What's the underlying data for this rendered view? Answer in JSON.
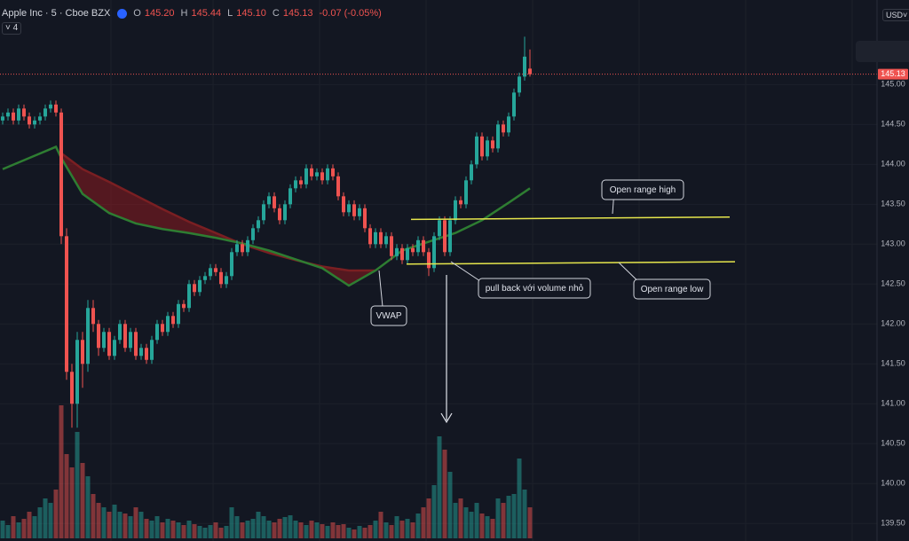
{
  "chart_data": {
    "type": "candlestick",
    "symbol": "Apple Inc · 5 · Cboe BZX",
    "ohlc_header": [
      {
        "key": "O",
        "text": "145.20"
      },
      {
        "key": "H",
        "text": "145.44"
      },
      {
        "key": "L",
        "text": "145.10"
      },
      {
        "key": "C",
        "text": "145.13"
      }
    ],
    "change": "-0.07 (-0.05%)",
    "interval_badge": "4",
    "currency": "USD",
    "up_color": "#26a69a",
    "down_color": "#ef5350",
    "ylim": [
      139.28,
      146.06
    ],
    "yticks": [
      {
        "value": 139.5,
        "label": "139.50"
      },
      {
        "value": 140,
        "label": "140.00"
      },
      {
        "value": 140.5,
        "label": "140.50"
      },
      {
        "value": 141,
        "label": "141.00"
      },
      {
        "value": 141.5,
        "label": "141.50"
      },
      {
        "value": 142,
        "label": "142.00"
      },
      {
        "value": 142.5,
        "label": "142.50"
      },
      {
        "value": 143,
        "label": "143.00"
      },
      {
        "value": 143.5,
        "label": "143.50"
      },
      {
        "value": 144,
        "label": "144.00"
      },
      {
        "value": 144.5,
        "label": "144.50"
      },
      {
        "value": 145,
        "label": "145.00"
      }
    ],
    "grid": true,
    "last_price": {
      "value": 145.13,
      "label": "145.13"
    },
    "open": [
      144.55,
      144.6,
      144.65,
      144.55,
      144.7,
      144.6,
      144.5,
      144.55,
      144.6,
      144.7,
      144.75,
      144.65,
      143.1,
      141.4,
      141.0,
      141.8,
      141.5,
      142.2,
      142.0,
      141.7,
      141.9,
      141.6,
      141.8,
      142.0,
      141.7,
      141.9,
      141.6,
      141.7,
      141.55,
      141.8,
      142.0,
      141.9,
      142.1,
      142.0,
      142.25,
      142.2,
      142.5,
      142.4,
      142.55,
      142.6,
      142.7,
      142.65,
      142.5,
      142.6,
      142.9,
      143.0,
      142.9,
      143.05,
      143.2,
      143.3,
      143.5,
      143.6,
      143.45,
      143.3,
      143.5,
      143.7,
      143.8,
      143.75,
      143.95,
      143.85,
      143.9,
      143.8,
      143.95,
      143.85,
      143.6,
      143.4,
      143.5,
      143.35,
      143.45,
      143.2,
      143.0,
      143.15,
      143.0,
      143.1,
      142.85,
      142.95,
      142.8,
      142.95,
      142.9,
      143.05,
      142.9,
      142.7,
      143.1,
      143.3,
      142.9,
      143.3,
      143.55,
      143.5,
      143.8,
      144.0,
      144.35,
      144.1,
      144.3,
      144.2,
      144.5,
      144.4,
      144.6,
      144.9,
      145.1,
      145.2
    ],
    "high": [
      144.65,
      144.7,
      144.7,
      144.75,
      144.75,
      144.65,
      144.6,
      144.65,
      144.75,
      144.8,
      144.8,
      144.7,
      143.2,
      141.5,
      141.9,
      141.9,
      142.3,
      142.3,
      142.05,
      141.95,
      141.95,
      141.85,
      142.05,
      142.05,
      141.95,
      141.95,
      141.75,
      141.75,
      141.85,
      142.05,
      142.05,
      142.15,
      142.15,
      142.3,
      142.3,
      142.55,
      142.55,
      142.6,
      142.65,
      142.75,
      142.75,
      142.7,
      142.65,
      142.95,
      143.05,
      143.05,
      143.1,
      143.25,
      143.35,
      143.55,
      143.65,
      143.65,
      143.5,
      143.55,
      143.75,
      143.85,
      143.85,
      144.0,
      144.0,
      143.95,
      143.95,
      144.0,
      144.0,
      143.9,
      143.65,
      143.55,
      143.55,
      143.5,
      143.5,
      143.25,
      143.2,
      143.2,
      143.15,
      143.15,
      143.0,
      143.0,
      143.0,
      143.0,
      143.1,
      143.1,
      142.95,
      143.15,
      143.35,
      143.35,
      143.35,
      143.6,
      143.6,
      143.85,
      144.05,
      144.4,
      144.4,
      144.35,
      144.35,
      144.55,
      144.55,
      144.65,
      144.95,
      145.15,
      145.6,
      145.44
    ],
    "low": [
      144.5,
      144.55,
      144.5,
      144.5,
      144.55,
      144.45,
      144.45,
      144.5,
      144.55,
      144.65,
      144.6,
      143.0,
      141.3,
      140.7,
      140.7,
      141.2,
      141.4,
      141.9,
      141.6,
      141.65,
      141.55,
      141.55,
      141.75,
      141.65,
      141.65,
      141.55,
      141.55,
      141.5,
      141.5,
      141.75,
      141.85,
      141.85,
      141.95,
      141.95,
      142.15,
      142.15,
      142.35,
      142.35,
      142.5,
      142.55,
      142.6,
      142.45,
      142.45,
      142.55,
      142.85,
      142.85,
      142.85,
      143.0,
      143.15,
      143.25,
      143.45,
      143.4,
      143.25,
      143.25,
      143.45,
      143.65,
      143.7,
      143.7,
      143.8,
      143.8,
      143.75,
      143.75,
      143.8,
      143.55,
      143.35,
      143.35,
      143.3,
      143.3,
      143.15,
      142.95,
      142.95,
      142.95,
      142.95,
      142.8,
      142.8,
      142.75,
      142.75,
      142.85,
      142.85,
      142.85,
      142.6,
      142.65,
      143.05,
      142.85,
      142.85,
      143.25,
      143.45,
      143.45,
      143.75,
      143.95,
      144.05,
      144.05,
      144.15,
      144.15,
      144.35,
      144.35,
      144.55,
      144.85,
      145.05,
      145.1
    ],
    "close": [
      144.6,
      144.65,
      144.55,
      144.7,
      144.6,
      144.5,
      144.55,
      144.6,
      144.7,
      144.75,
      144.65,
      143.1,
      141.4,
      141.0,
      141.8,
      141.5,
      142.2,
      142.0,
      141.7,
      141.9,
      141.6,
      141.8,
      142.0,
      141.7,
      141.9,
      141.6,
      141.7,
      141.55,
      141.8,
      142.0,
      141.9,
      142.1,
      142.0,
      142.25,
      142.2,
      142.5,
      142.4,
      142.55,
      142.6,
      142.7,
      142.65,
      142.5,
      142.6,
      142.9,
      143.0,
      142.9,
      143.05,
      143.2,
      143.3,
      143.5,
      143.6,
      143.45,
      143.3,
      143.5,
      143.7,
      143.8,
      143.75,
      143.95,
      143.85,
      143.9,
      143.8,
      143.95,
      143.85,
      143.6,
      143.4,
      143.5,
      143.35,
      143.45,
      143.2,
      143.0,
      143.15,
      143.0,
      143.1,
      142.85,
      142.95,
      142.8,
      142.95,
      142.9,
      143.05,
      142.9,
      142.7,
      143.1,
      143.3,
      142.9,
      143.3,
      143.55,
      143.5,
      143.8,
      144.0,
      144.35,
      144.1,
      144.3,
      144.2,
      144.5,
      144.4,
      144.6,
      144.9,
      145.1,
      145.35,
      145.13
    ],
    "volume_lim": [
      0,
      160
    ],
    "volume": [
      20,
      15,
      25,
      18,
      22,
      30,
      25,
      35,
      45,
      40,
      55,
      150,
      95,
      80,
      120,
      85,
      70,
      50,
      40,
      35,
      30,
      38,
      30,
      28,
      25,
      35,
      30,
      22,
      20,
      25,
      18,
      22,
      20,
      18,
      15,
      20,
      16,
      14,
      12,
      15,
      18,
      12,
      14,
      35,
      25,
      18,
      20,
      22,
      30,
      25,
      20,
      18,
      22,
      24,
      26,
      20,
      18,
      15,
      20,
      18,
      16,
      14,
      18,
      15,
      16,
      12,
      10,
      14,
      12,
      15,
      20,
      30,
      18,
      15,
      25,
      20,
      22,
      18,
      28,
      35,
      45,
      60,
      115,
      100,
      75,
      40,
      45,
      35,
      30,
      40,
      28,
      25,
      22,
      45,
      40,
      48,
      50,
      90,
      55,
      35
    ],
    "lines": [
      {
        "color": "#7a1f22",
        "x": [
          0,
          5,
          10,
          11,
          15,
          20,
          25,
          30,
          35,
          40,
          45,
          50,
          55,
          60,
          65,
          70,
          75,
          80,
          85,
          90,
          95,
          99
        ],
        "values": [
          null,
          null,
          null,
          144.14,
          143.94,
          143.78,
          143.61,
          143.44,
          143.28,
          143.14,
          143.0,
          142.89,
          142.8,
          142.72,
          142.67,
          142.67,
          null,
          null,
          null,
          null,
          null,
          null
        ]
      },
      {
        "color": "#2e7d32",
        "x": [
          0,
          5,
          10,
          11,
          15,
          20,
          25,
          30,
          35,
          40,
          45,
          50,
          55,
          60,
          65,
          70,
          75,
          80,
          85,
          90,
          95,
          99
        ],
        "values": [
          143.94,
          144.08,
          144.22,
          144.08,
          143.63,
          143.39,
          143.26,
          143.19,
          143.14,
          143.08,
          143.01,
          142.92,
          142.81,
          142.7,
          142.48,
          142.67,
          142.92,
          143.03,
          143.14,
          143.3,
          143.52,
          143.7
        ]
      }
    ],
    "levels": [
      {
        "label": "Open range high",
        "values": [
          143.31,
          143.34
        ],
        "color": "#e6e64c"
      },
      {
        "label": "Open range low",
        "values": [
          142.75,
          142.78
        ],
        "color": "#e6e64c"
      }
    ],
    "annotations": [
      "VWAP",
      "pull back với volume nhỏ"
    ]
  }
}
